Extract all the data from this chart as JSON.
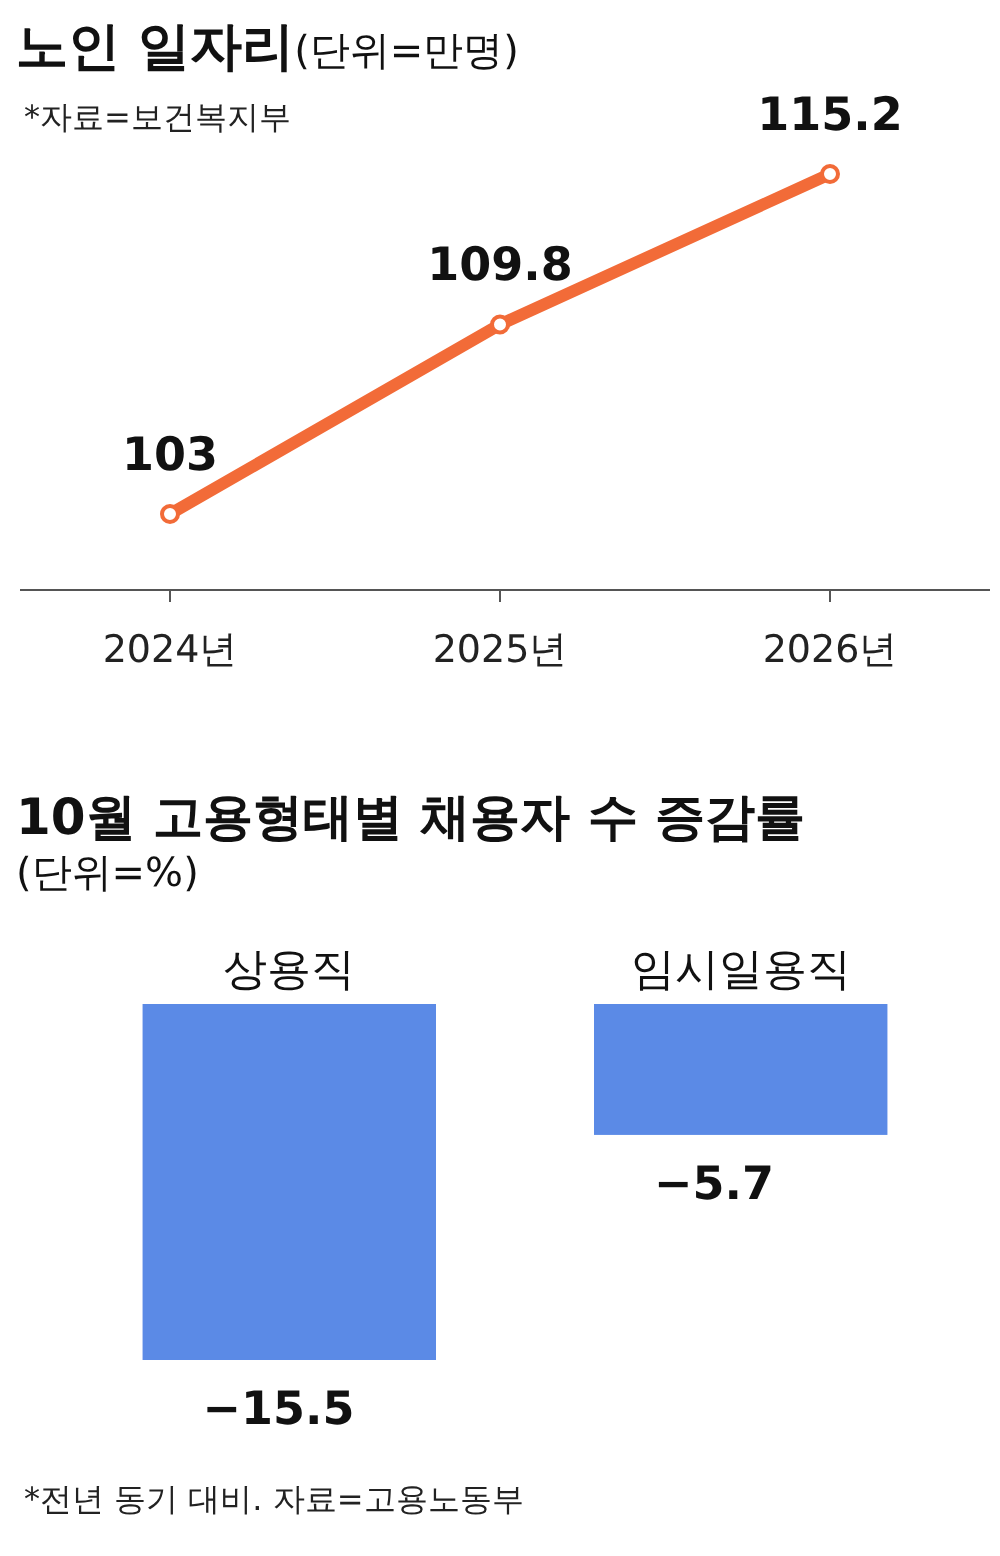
{
  "chart_data": [
    {
      "type": "line",
      "title": "노인 일자리",
      "subtitle": "(단위=만명)",
      "annotations": [
        "*자료=보건복지부"
      ],
      "categories": [
        "2024년",
        "2025년",
        "2026년"
      ],
      "values": [
        103,
        109.8,
        115.2
      ],
      "color": "#f26b38",
      "marker": "circle",
      "data_labels": true
    },
    {
      "type": "bar",
      "title": "10월 고용형태별 채용자 수 증감률",
      "subtitle": "(단위=%)",
      "annotations": [
        "*전년 동기 대비. 자료=고용노동부"
      ],
      "categories": [
        "상용직",
        "임시일용직"
      ],
      "values": [
        -15.5,
        -5.7
      ],
      "color": "#5b8ae6",
      "data_labels": true
    }
  ]
}
